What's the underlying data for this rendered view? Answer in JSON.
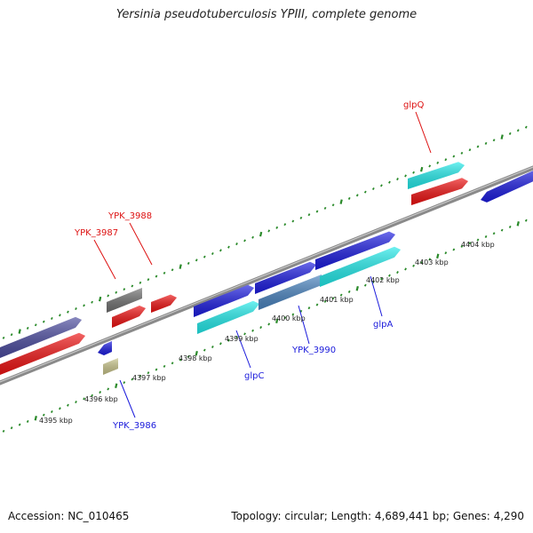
{
  "title": "Yersinia pseudotuberculosis YPIII, complete genome",
  "footer": {
    "accession": "Accession: NC_010465",
    "summary": "Topology: circular; Length: 4,689,441 bp; Genes: 4,290"
  },
  "colors": {
    "backbone": "#8a8a8a",
    "tick": "#2a8a2a",
    "label_red": "#dd1111",
    "label_blue": "#1a1adb"
  },
  "scale_ticks": [
    "4395 kbp",
    "4396 kbp",
    "4397 kbp",
    "4398 kbp",
    "4399 kbp",
    "4400 kbp",
    "4401 kbp",
    "4402 kbp",
    "4403 kbp",
    "4404 kbp"
  ],
  "feature_colors": {
    "purple": "#4a4a9e",
    "red": "#ee1111",
    "gray": "#707070",
    "blue": "#1c1ce0",
    "cyan": "#22eaea",
    "steel": "#4a84c0",
    "khaki": "#c8c48a"
  },
  "gene_labels": [
    {
      "text": "glpQ",
      "color": "red"
    },
    {
      "text": "YPK_3988",
      "color": "red"
    },
    {
      "text": "YPK_3987",
      "color": "red"
    },
    {
      "text": "YPK_3990",
      "color": "blue"
    },
    {
      "text": "glpA",
      "color": "blue"
    },
    {
      "text": "glpC",
      "color": "blue"
    },
    {
      "text": "YPK_3986",
      "color": "blue"
    }
  ]
}
